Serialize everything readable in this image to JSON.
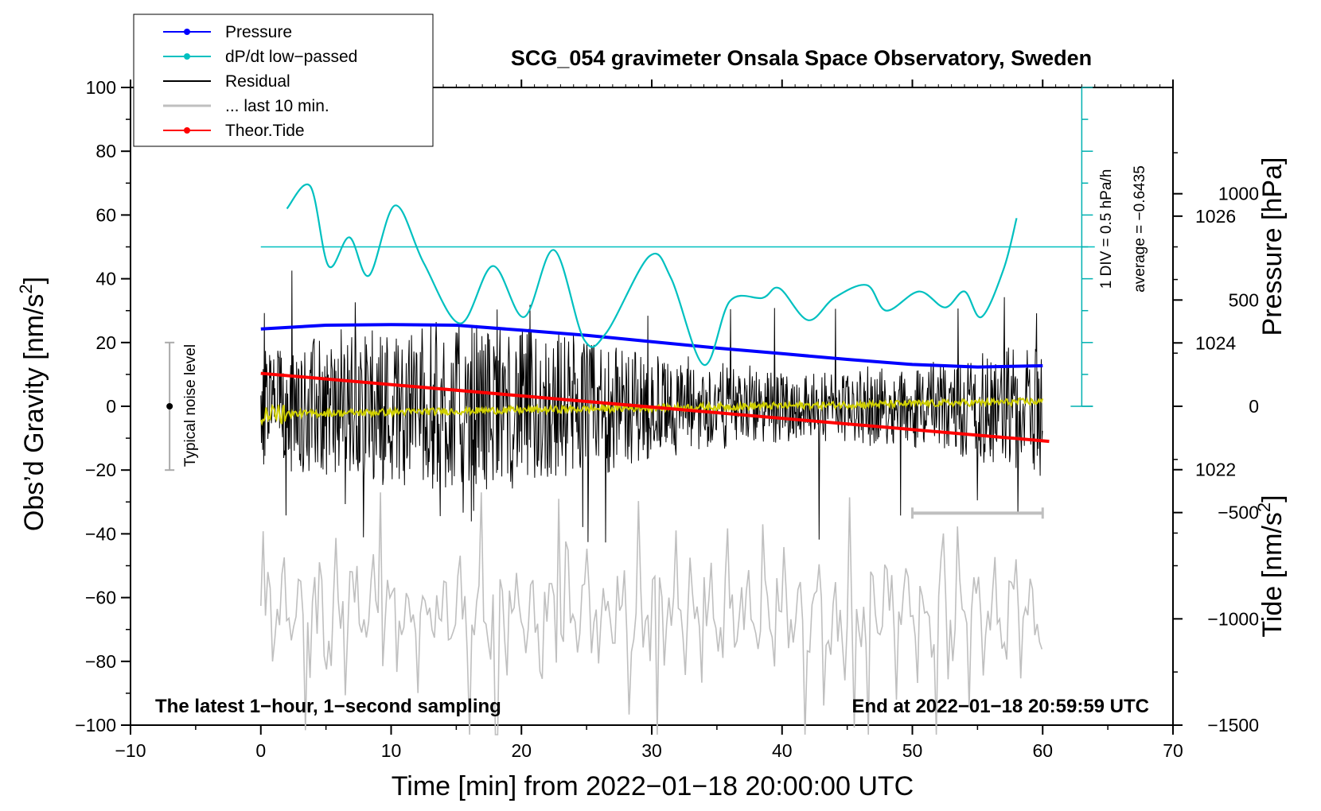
{
  "chart_data": {
    "type": "line",
    "title": "SCG_054 gravimeter Onsala Space Observatory, Sweden",
    "xlabel": "Time [min] from 2022−01−18 20:00:00 UTC",
    "ylabel_main": "Obs’d Gravity [nm/s",
    "ylabel_main_sup": "2",
    "ylabel_main_end": "]",
    "ylabel_pressure": "Pressure [hPa]",
    "ylabel_tide": "Tide [nm/s",
    "ylabel_tide_sup": "2",
    "ylabel_tide_end": "]",
    "xlim": [
      -10,
      70
    ],
    "ylim": [
      -100,
      100
    ],
    "x_ticks": [
      -10,
      0,
      10,
      20,
      30,
      40,
      50,
      60,
      70
    ],
    "x_tick_labels": [
      "−10",
      "0",
      "10",
      "20",
      "30",
      "40",
      "50",
      "60",
      "70"
    ],
    "y_ticks": [
      100,
      80,
      60,
      40,
      20,
      0,
      -20,
      -40,
      -60,
      -80,
      -100
    ],
    "y_tick_labels": [
      "100",
      "80",
      "60",
      "40",
      "20",
      "0",
      "−20",
      "−40",
      "−60",
      "−80",
      "−100"
    ],
    "pressure_axis": {
      "range": [
        1017.97,
        1028.03
      ],
      "ticks": [
        1026,
        1024,
        1022
      ],
      "tick_labels": [
        "1026",
        "1024",
        "1022"
      ]
    },
    "tide_axis": {
      "range": [
        -1500,
        1500
      ],
      "ticks": [
        1000,
        500,
        0,
        -500,
        -1000,
        -1500
      ],
      "tick_labels": [
        "1000",
        "500",
        "0",
        "−500",
        "−1000",
        "−1500"
      ]
    },
    "legend": [
      {
        "label": "Pressure",
        "color": "#0000ff",
        "marker": true
      },
      {
        "label": "dP/dt low−passed",
        "color": "#00c0c0",
        "marker": true
      },
      {
        "label": "Residual",
        "color": "#000000",
        "marker": false
      },
      {
        "label": "... last 10 min.",
        "color": "#bfbfbf",
        "marker": false
      },
      {
        "label": "Theor.Tide",
        "color": "#ff0000",
        "marker": true
      }
    ],
    "series": [
      {
        "name": "Pressure",
        "color": "#0000ff",
        "axis": "pressure",
        "x": [
          0,
          5,
          10,
          15,
          20,
          25,
          30,
          35,
          40,
          45,
          50,
          55,
          60
        ],
        "y": [
          1024.22,
          1024.28,
          1024.29,
          1024.28,
          1024.2,
          1024.12,
          1024.02,
          1023.92,
          1023.83,
          1023.74,
          1023.66,
          1023.62,
          1023.64
        ]
      },
      {
        "name": "dP/dt low−passed",
        "color": "#00c0c0",
        "axis": "dpdt",
        "baseline": 50,
        "x": [
          2,
          3.8,
          5.2,
          6.8,
          8.3,
          10.3,
          12.5,
          15.3,
          17.8,
          20.2,
          22.5,
          24.8,
          26.5,
          29.8,
          31.5,
          34,
          36,
          38.5,
          39.8,
          42,
          44,
          46.5,
          48,
          50.5,
          52.5,
          54,
          55.3,
          57,
          58
        ],
        "y": [
          62,
          69,
          44,
          53,
          41,
          63,
          45,
          26,
          44,
          28,
          49,
          21,
          23,
          47,
          40,
          13,
          33,
          34,
          37,
          27,
          34,
          38,
          30,
          36,
          31,
          36,
          28,
          43,
          59
        ]
      },
      {
        "name": "Residual",
        "color": "#000000",
        "x_range": [
          0,
          60
        ],
        "amplitude": 22
      },
      {
        "name": "Yellow low-passed",
        "color": "#d0d000",
        "x_range": [
          0,
          60
        ],
        "y_start": -2.5,
        "y_end": 1.5
      },
      {
        "name": "... last 10 min.",
        "color": "#bfbfbf",
        "x_range": [
          0,
          60
        ],
        "center": -65,
        "amplitude": 22
      },
      {
        "name": "Theor.Tide",
        "color": "#ff0000",
        "axis": "tide",
        "x": [
          0,
          60.5
        ],
        "y": [
          155,
          -165
        ]
      }
    ],
    "noise_bar": {
      "x": -7,
      "y_low": -20,
      "y_high": 20,
      "label": "Typical noise level"
    },
    "ten_min_bar": {
      "x_start": 50,
      "x_end": 60,
      "y": -33.5
    },
    "dpdt_scale": {
      "label_div": "1 DIV = 0.5 hPa/h",
      "label_avg": "average = −0.6435"
    },
    "footer_left": "The latest 1−hour, 1−second sampling",
    "footer_right": "End at 2022−01−18 20:59:59 UTC"
  }
}
